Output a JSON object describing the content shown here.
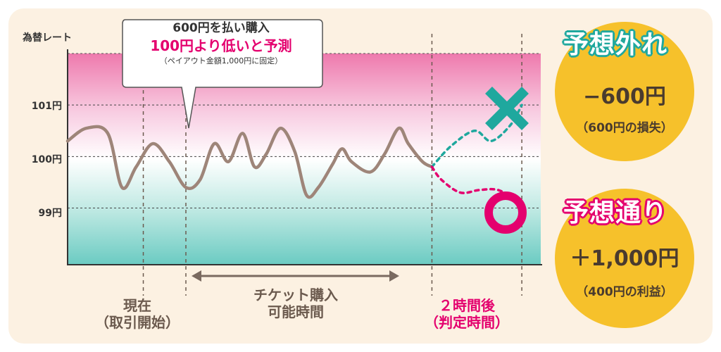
{
  "chart_data": {
    "type": "line",
    "ylabel": "為替レート",
    "y_ticks": [
      "101円",
      "100円",
      "99円"
    ],
    "tick_values": [
      101,
      100,
      99
    ],
    "ylim": [
      97.9,
      102.0
    ],
    "grid": "dashed horizontal",
    "xlim": [
      0,
      100
    ],
    "series": [
      {
        "x": [
          0,
          4,
          8.5,
          11.5,
          14.5,
          18,
          21.5,
          25,
          28,
          31,
          34,
          37,
          39.5,
          42,
          45,
          48,
          50.5,
          53,
          56,
          58,
          60,
          64,
          67,
          70,
          72,
          75,
          77
        ],
        "y": [
          100.3,
          100.55,
          100.45,
          99.4,
          99.8,
          100.25,
          99.9,
          99.4,
          99.55,
          100.25,
          99.9,
          100.45,
          99.8,
          100.05,
          100.55,
          100.1,
          99.25,
          99.4,
          99.85,
          100.15,
          99.9,
          99.7,
          100.05,
          100.55,
          100.25,
          99.9,
          99.8
        ]
      },
      {
        "x": [
          77,
          81,
          86,
          89.5,
          93.5,
          96
        ],
        "y": [
          99.8,
          100.2,
          100.5,
          100.3,
          100.6,
          101.0
        ]
      },
      {
        "x": [
          77,
          79,
          83,
          87,
          91,
          94.5,
          96
        ],
        "y": [
          99.8,
          99.55,
          99.3,
          99.35,
          99.35,
          99.15,
          99.0
        ]
      }
    ],
    "vlines_x": [
      16,
      25,
      77,
      96
    ],
    "colors": {
      "price": "#9e8579",
      "up": "#1fa89e",
      "down": "#e4006e"
    }
  },
  "callout": {
    "line1": "600円を払い購入",
    "line2": "100円より低いと予測",
    "line3": "（ペイアウト金額1,000円に固定）"
  },
  "labels": {
    "now": [
      "現在",
      "（取引開始）"
    ],
    "window": [
      "チケット購入",
      "可能時間"
    ],
    "after": [
      "２時間後",
      "（判定時間）"
    ]
  },
  "outcomes": {
    "loss": {
      "title": "予想外れ",
      "amount": "−600円",
      "note": "（600円の損失）",
      "mark": "cross-icon"
    },
    "win": {
      "title": "予想通り",
      "amount": "＋1,000円",
      "note": "（400円の利益）",
      "mark": "circle-icon"
    }
  }
}
